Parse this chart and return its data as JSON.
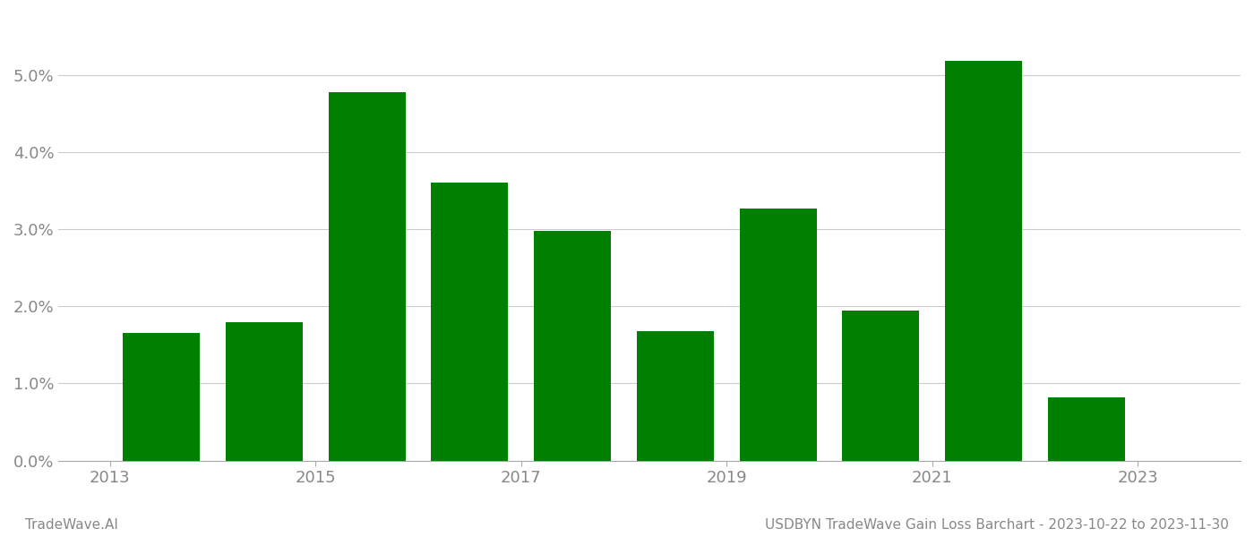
{
  "years": [
    2013,
    2014,
    2015,
    2016,
    2017,
    2018,
    2019,
    2020,
    2021,
    2022
  ],
  "values": [
    0.0165,
    0.018,
    0.0478,
    0.036,
    0.0298,
    0.0168,
    0.0327,
    0.0195,
    0.0518,
    0.0082
  ],
  "bar_color": "#008000",
  "footer_left": "TradeWave.AI",
  "footer_right": "USDBYN TradeWave Gain Loss Barchart - 2023-10-22 to 2023-11-30",
  "ylim": [
    0,
    0.058
  ],
  "yticks": [
    0.0,
    0.01,
    0.02,
    0.03,
    0.04,
    0.05
  ],
  "xtick_positions": [
    2012.5,
    2014.5,
    2016.5,
    2018.5,
    2020.5,
    2022.5
  ],
  "xtick_labels": [
    "2013",
    "2015",
    "2017",
    "2019",
    "2021",
    "2023"
  ],
  "xlim": [
    2012.0,
    2023.5
  ],
  "bar_width": 0.75,
  "figsize": [
    14.0,
    6.0
  ],
  "dpi": 100,
  "background_color": "#ffffff",
  "grid_color": "#cccccc",
  "spine_color": "#aaaaaa",
  "tick_color": "#888888",
  "footer_color": "#888888",
  "tick_fontsize": 13,
  "footer_fontsize": 11
}
